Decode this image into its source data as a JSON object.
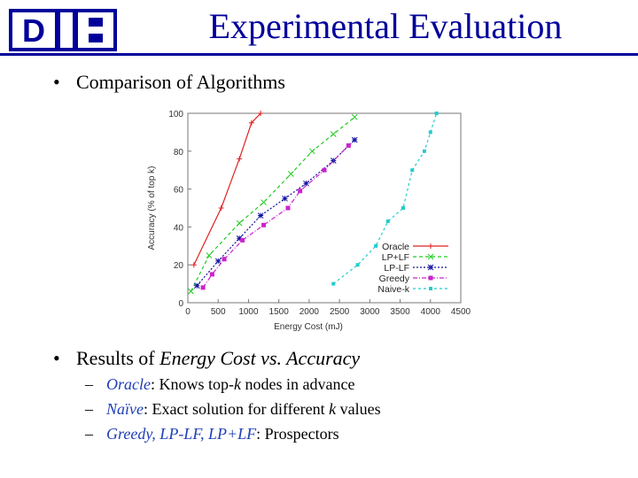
{
  "header": {
    "title": "Experimental Evaluation",
    "logo_text": "D",
    "logo_alt": "Duke University logo"
  },
  "bullets": [
    "Comparison of Algorithms",
    "Results of Energy Cost vs. Accuracy"
  ],
  "bullet2_parts": {
    "prefix": "Results of ",
    "italic": "Energy Cost vs. Accuracy"
  },
  "subbullets": [
    {
      "name": "Oracle",
      "text_a": ": Knows top-",
      "k": "k",
      "text_b": " nodes in advance"
    },
    {
      "name": "Naïve",
      "text_a": ": Exact solution for different ",
      "k": "k",
      "text_b": " values"
    },
    {
      "name": "Greedy, LP-LF, LP+LF",
      "text_a": ": Prospectors",
      "k": "",
      "text_b": ""
    }
  ],
  "colors": {
    "title": "#00009a",
    "subbullet_names": "#1f3fb6"
  },
  "chart_data": {
    "type": "line",
    "xlabel": "Energy Cost (mJ)",
    "ylabel": "Accuracy (% of top k)",
    "xlim": [
      0,
      4500
    ],
    "ylim": [
      0,
      100
    ],
    "xticks": [
      0,
      500,
      1000,
      1500,
      2000,
      2500,
      3000,
      3500,
      4000,
      4500
    ],
    "yticks": [
      0,
      20,
      40,
      60,
      80,
      100
    ],
    "legend_position": "bottom-right",
    "series": [
      {
        "name": "Oracle",
        "color": "#e02020",
        "dash": "solid",
        "marker": "plus",
        "x": [
          100,
          550,
          850,
          1050,
          1200
        ],
        "y": [
          20,
          50,
          76,
          95,
          100
        ]
      },
      {
        "name": "LP+LF",
        "color": "#22cc22",
        "dash": "4,3",
        "marker": "x",
        "x": [
          50,
          350,
          850,
          1250,
          1700,
          2050,
          2400,
          2750
        ],
        "y": [
          6,
          25,
          42,
          53,
          68,
          80,
          89,
          98
        ]
      },
      {
        "name": "LP-LF",
        "color": "#1010a0",
        "dash": "2,2",
        "marker": "asterisk",
        "x": [
          150,
          500,
          850,
          1200,
          1600,
          1950,
          2400,
          2750
        ],
        "y": [
          9,
          22,
          34,
          46,
          55,
          63,
          75,
          86
        ]
      },
      {
        "name": "Greedy",
        "color": "#cc22cc",
        "dash": "5,2,1,2",
        "marker": "square",
        "x": [
          250,
          400,
          600,
          900,
          1250,
          1650,
          1850,
          2250,
          2650
        ],
        "y": [
          8,
          15,
          23,
          33,
          41,
          50,
          59,
          70,
          83
        ]
      },
      {
        "name": "Naive-k",
        "color": "#22cccc",
        "dash": "3,3",
        "marker": "filled-square",
        "x": [
          2400,
          2800,
          3100,
          3300,
          3550,
          3700,
          3900,
          4000,
          4100
        ],
        "y": [
          10,
          20,
          30,
          43,
          50,
          70,
          80,
          90,
          100
        ]
      }
    ]
  }
}
